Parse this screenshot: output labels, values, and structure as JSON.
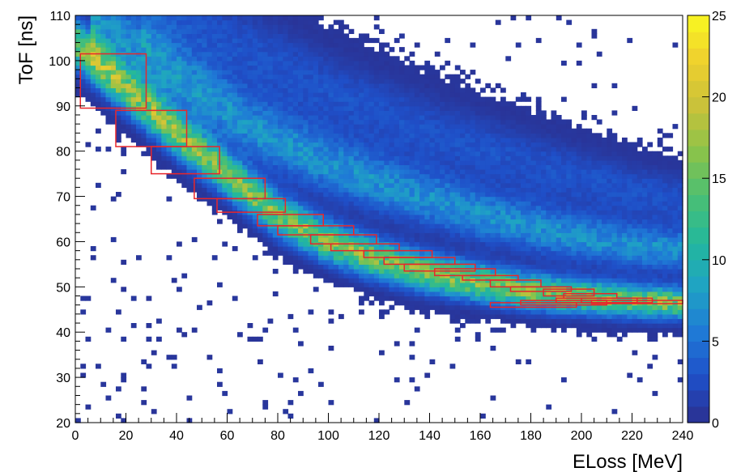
{
  "chart_data": {
    "type": "heatmap",
    "title": "",
    "xlabel": "ELoss [MeV]",
    "ylabel": "ToF [ns]",
    "xlim": [
      0,
      240
    ],
    "ylim": [
      20,
      110
    ],
    "x_ticks": [
      "0",
      "20",
      "40",
      "60",
      "80",
      "100",
      "120",
      "140",
      "160",
      "180",
      "200",
      "220",
      "240"
    ],
    "y_ticks": [
      "20",
      "30",
      "40",
      "50",
      "60",
      "70",
      "80",
      "90",
      "100",
      "110"
    ],
    "colorbar": {
      "range": [
        0,
        25
      ],
      "ticks": [
        "0",
        "5",
        "10",
        "15",
        "20",
        "25"
      ],
      "colors": [
        "#2b2f8f",
        "#1f4fc8",
        "#1f7ad6",
        "#1fa3c4",
        "#23b89c",
        "#4bbf73",
        "#8bc34a",
        "#c9c23a",
        "#efcf2e",
        "#f9f920"
      ]
    },
    "bands": [
      {
        "name": "",
        "points": [
          [
            0,
            104
          ],
          [
            20,
            94
          ],
          [
            40,
            84
          ],
          [
            60,
            75
          ],
          [
            80,
            66
          ],
          [
            100,
            60
          ],
          [
            120,
            56
          ],
          [
            140,
            53
          ],
          [
            160,
            51
          ],
          [
            180,
            49
          ],
          [
            200,
            48
          ],
          [
            220,
            47
          ],
          [
            240,
            46.5
          ]
        ],
        "peak": 16
      },
      {
        "name": "",
        "points": [
          [
            10,
            109
          ],
          [
            40,
            96
          ],
          [
            70,
            85
          ],
          [
            100,
            77
          ],
          [
            130,
            71
          ],
          [
            160,
            66
          ],
          [
            190,
            62
          ],
          [
            220,
            59
          ],
          [
            240,
            58
          ]
        ],
        "peak": 7
      },
      {
        "name": "",
        "points": [
          [
            30,
            112
          ],
          [
            60,
            104
          ],
          [
            100,
            93
          ],
          [
            140,
            84
          ],
          [
            180,
            77
          ],
          [
            220,
            71
          ],
          [
            240,
            69
          ]
        ],
        "peak": 3
      }
    ],
    "cut_boxes": [
      {
        "x": [
          2,
          28
        ],
        "y": [
          89.5,
          101.5
        ]
      },
      {
        "x": [
          16,
          44
        ],
        "y": [
          81,
          89
        ]
      },
      {
        "x": [
          30,
          57
        ],
        "y": [
          75,
          81
        ]
      },
      {
        "x": [
          47,
          75
        ],
        "y": [
          69.5,
          74
        ]
      },
      {
        "x": [
          56,
          83
        ],
        "y": [
          66.5,
          69.5
        ]
      },
      {
        "x": [
          72,
          98
        ],
        "y": [
          63.5,
          66
        ]
      },
      {
        "x": [
          80,
          110
        ],
        "y": [
          61.5,
          63.5
        ]
      },
      {
        "x": [
          93,
          119
        ],
        "y": [
          59.5,
          61.5
        ]
      },
      {
        "x": [
          101,
          128
        ],
        "y": [
          58,
          59.5
        ]
      },
      {
        "x": [
          114,
          141
        ],
        "y": [
          56.5,
          58
        ]
      },
      {
        "x": [
          122,
          150
        ],
        "y": [
          55,
          56.5
        ]
      },
      {
        "x": [
          130,
          158
        ],
        "y": [
          53.5,
          55
        ]
      },
      {
        "x": [
          142,
          166
        ],
        "y": [
          52.5,
          54
        ]
      },
      {
        "x": [
          153,
          175
        ],
        "y": [
          51.5,
          52.5
        ]
      },
      {
        "x": [
          164,
          184
        ],
        "y": [
          50,
          51.5
        ]
      },
      {
        "x": [
          172,
          196
        ],
        "y": [
          49,
          50
        ]
      },
      {
        "x": [
          185,
          205
        ],
        "y": [
          48,
          49.5
        ]
      },
      {
        "x": [
          193,
          214
        ],
        "y": [
          47.5,
          48.5
        ]
      },
      {
        "x": [
          200,
          222
        ],
        "y": [
          46.5,
          47.5
        ]
      },
      {
        "x": [
          164,
          198
        ],
        "y": [
          45.5,
          46.5
        ]
      },
      {
        "x": [
          176,
          210
        ],
        "y": [
          46,
          47
        ]
      },
      {
        "x": [
          190,
          228
        ],
        "y": [
          46.5,
          47.5
        ]
      },
      {
        "x": [
          204,
          240
        ],
        "y": [
          46.3,
          47
        ]
      }
    ],
    "cut_color": "#e8262b",
    "grid": false,
    "legend": "none"
  }
}
